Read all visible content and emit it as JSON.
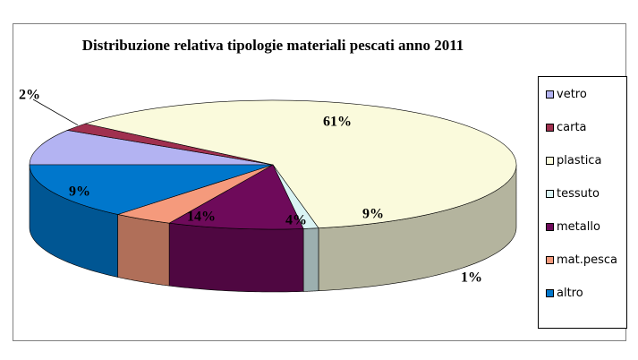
{
  "chart_data": {
    "type": "pie",
    "title": "Distribuzione relativa tipologie materiali pescati anno 2011",
    "legend_position": "right",
    "slices": [
      {
        "name": "vetro",
        "value": 9,
        "label": "9%",
        "color": "#b3b3f2"
      },
      {
        "name": "carta",
        "value": 2,
        "label": "2%",
        "color": "#a0304f"
      },
      {
        "name": "plastica",
        "value": 61,
        "label": "61%",
        "color": "#fafadc"
      },
      {
        "name": "tessuto",
        "value": 1,
        "label": "1%",
        "color": "#d9f3f3"
      },
      {
        "name": "metallo",
        "value": 9,
        "label": "9%",
        "color": "#6e0a5a"
      },
      {
        "name": "mat.pesca",
        "value": 4,
        "label": "4%",
        "color": "#f59a7c"
      },
      {
        "name": "altro",
        "value": 14,
        "label": "14%",
        "color": "#0077cc"
      }
    ]
  }
}
